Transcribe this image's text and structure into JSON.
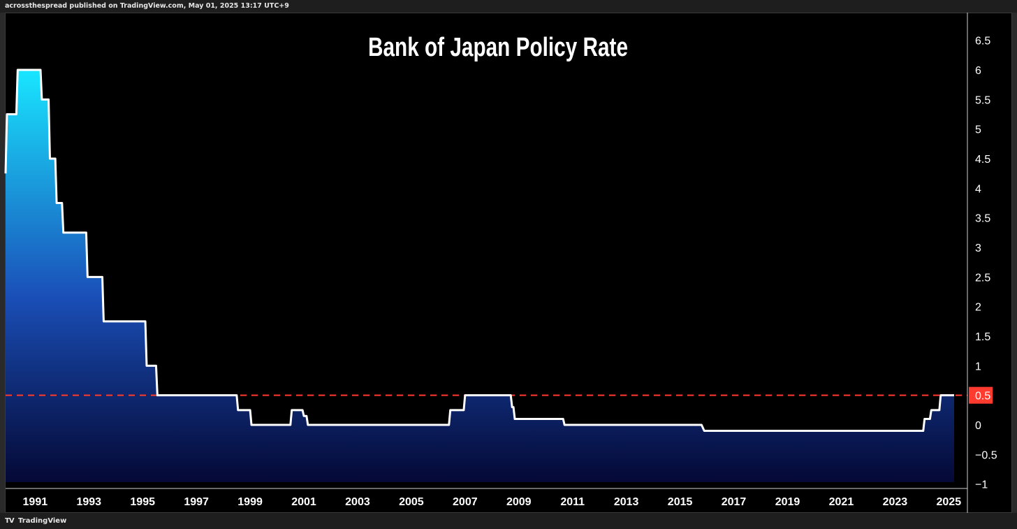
{
  "header": {
    "publisher_text": "acrossthespread published on TradingView.com, May 01, 2025 13:17 UTC+9"
  },
  "footer": {
    "logo_icon": "tradingview-logo-icon",
    "brand_label": "TradingView"
  },
  "colors": {
    "background": "#000000",
    "line": "#ffffff",
    "area_top": "#19e6ff",
    "area_bottom": "#050a3c",
    "current_level": "#ff3b30",
    "axis_text": "#ffffff"
  },
  "chart_data": {
    "type": "area",
    "title": "Bank of Japan Policy Rate",
    "xlabel": "",
    "ylabel": "",
    "xlim": [
      1990.0,
      2025.75
    ],
    "ylim": [
      -1,
      6.8
    ],
    "x_ticks": [
      1991,
      1993,
      1995,
      1997,
      1999,
      2001,
      2003,
      2005,
      2007,
      2009,
      2011,
      2013,
      2015,
      2017,
      2019,
      2021,
      2023,
      2025
    ],
    "y_ticks": [
      -1,
      -0.5,
      0,
      0.5,
      1,
      1.5,
      2,
      2.5,
      3,
      3.5,
      4,
      4.5,
      5,
      5.5,
      6,
      6.5
    ],
    "y_tick_labels": [
      "−1",
      "−0.5",
      "0",
      "0.5",
      "1",
      "1.5",
      "2",
      "2.5",
      "3",
      "3.5",
      "4",
      "4.5",
      "5",
      "5.5",
      "6",
      "6.5"
    ],
    "current_value": 0.5,
    "current_value_label": "0.5",
    "reference_line": {
      "value": 0.5,
      "style": "dashed"
    },
    "grid": false,
    "series": [
      {
        "x": [
          1990.0,
          1990.05,
          1990.4,
          1990.45,
          1991.3,
          1991.35,
          1991.6,
          1991.65,
          1991.85,
          1991.9,
          1992.1,
          1992.15,
          1992.3,
          1992.35,
          1992.55,
          1992.6,
          1993.0,
          1993.05,
          1993.6,
          1993.65,
          1995.2,
          1995.25,
          1995.6,
          1995.65,
          1998.6,
          1998.65,
          1999.1,
          1999.15,
          2000.6,
          2000.65,
          2001.05,
          2001.1,
          2001.2,
          2001.25,
          2006.5,
          2006.55,
          2007.05,
          2007.1,
          2008.8,
          2008.85,
          2008.9,
          2008.95,
          2010.75,
          2010.8,
          2015.9,
          2016.0,
          2024.15,
          2024.2,
          2024.4,
          2024.45,
          2024.75,
          2024.8,
          2025.3
        ],
        "y": [
          4.25,
          5.25,
          5.25,
          6.0,
          6.0,
          5.5,
          5.5,
          4.5,
          4.5,
          3.75,
          3.75,
          3.25,
          3.25,
          3.25,
          3.25,
          3.25,
          3.25,
          2.5,
          2.5,
          1.75,
          1.75,
          1.0,
          1.0,
          0.5,
          0.5,
          0.25,
          0.25,
          0.0,
          0.0,
          0.25,
          0.25,
          0.15,
          0.15,
          0.0,
          0.0,
          0.25,
          0.25,
          0.5,
          0.5,
          0.3,
          0.3,
          0.1,
          0.1,
          0.0,
          0.0,
          -0.1,
          -0.1,
          0.1,
          0.1,
          0.25,
          0.25,
          0.5,
          0.5
        ]
      }
    ]
  }
}
